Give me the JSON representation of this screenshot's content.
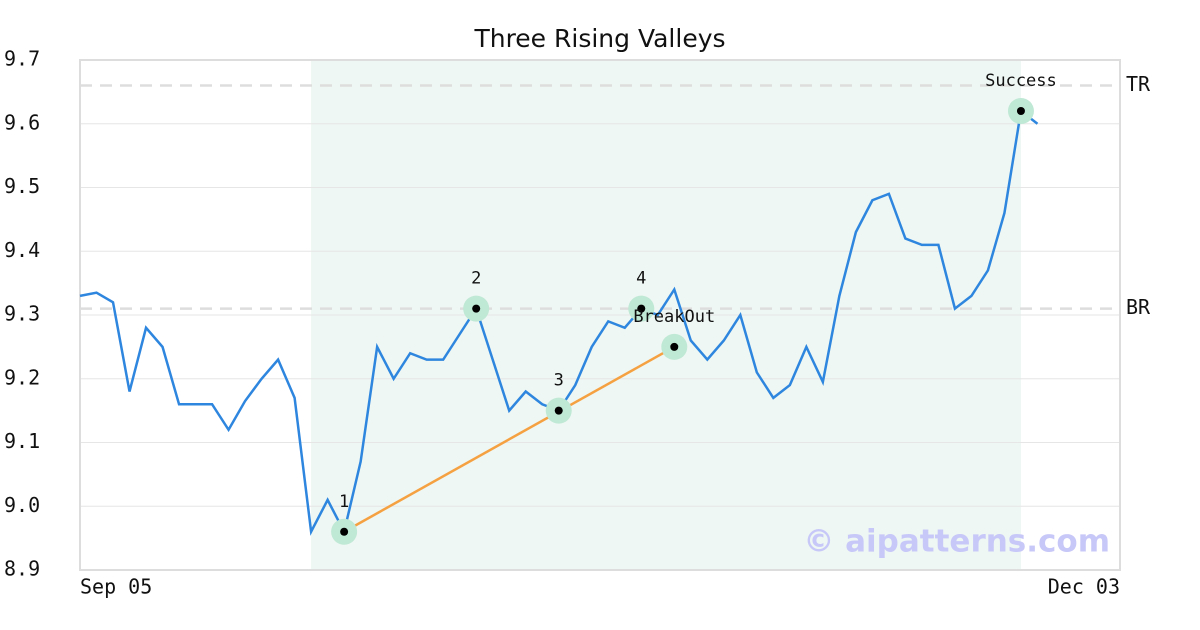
{
  "chart_data": {
    "type": "line",
    "title": "Three Rising Valleys",
    "watermark": "© aipatterns.com",
    "categories": [
      "Sep 05",
      null,
      null,
      null,
      null,
      null,
      null,
      null,
      null,
      null,
      null,
      null,
      null,
      null,
      null,
      null,
      null,
      null,
      null,
      null,
      null,
      null,
      null,
      null,
      null,
      null,
      null,
      null,
      null,
      null,
      null,
      null,
      null,
      null,
      null,
      null,
      null,
      null,
      null,
      null,
      null,
      null,
      null,
      null,
      null,
      null,
      null,
      null,
      null,
      null,
      null,
      null,
      null,
      null,
      null,
      null,
      null,
      null,
      null,
      null,
      null,
      null,
      null,
      "Dec 03"
    ],
    "series": [
      {
        "color": "#2e86de",
        "values": [
          9.33,
          9.335,
          9.32,
          9.18,
          9.28,
          9.25,
          9.16,
          9.16,
          9.16,
          9.12,
          9.165,
          9.2,
          9.23,
          9.17,
          8.96,
          9.01,
          8.96,
          9.07,
          9.25,
          9.2,
          9.24,
          9.23,
          9.23,
          9.27,
          9.31,
          9.23,
          9.15,
          9.18,
          9.16,
          9.15,
          9.19,
          9.25,
          9.29,
          9.28,
          9.31,
          9.3,
          9.34,
          9.26,
          9.23,
          9.26,
          9.3,
          9.21,
          9.17,
          9.19,
          9.25,
          9.195,
          9.33,
          9.43,
          9.48,
          9.49,
          9.42,
          9.41,
          9.41,
          9.31,
          9.33,
          9.37,
          9.46,
          9.62,
          9.6,
          null,
          null,
          null,
          null,
          null
        ]
      }
    ],
    "ylim": [
      8.9,
      9.7
    ],
    "yticks": [
      8.9,
      {
        "value": 9,
        "label": "9.0"
      },
      9.1,
      9.2,
      9.3,
      9.4,
      9.5,
      9.6,
      9.7
    ],
    "grid": true,
    "highlight": {
      "from": 14,
      "to": 57,
      "color": "#eef7f3"
    },
    "levels": [
      {
        "label": "TR",
        "value": 9.66
      },
      {
        "label": "BR",
        "value": 9.31
      }
    ],
    "annotations": [
      {
        "label": "1",
        "index": 16,
        "value": 8.96
      },
      {
        "label": "2",
        "index": 24,
        "value": 9.31
      },
      {
        "label": "3",
        "index": 29,
        "value": 9.15
      },
      {
        "label": "4",
        "index": 34,
        "value": 9.31
      },
      {
        "label": "BreakOut",
        "index": 36,
        "value": 9.25
      },
      {
        "label": "Success",
        "index": 57,
        "value": 9.62
      }
    ],
    "trend_line": {
      "from": 0,
      "to": 4,
      "color": "#f5a142"
    }
  }
}
